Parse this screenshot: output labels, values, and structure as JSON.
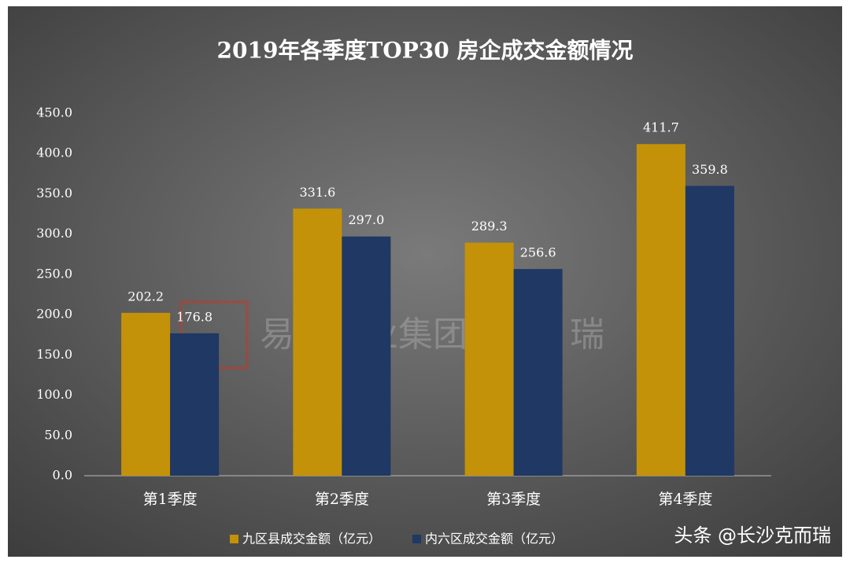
{
  "chart_data": {
    "type": "bar",
    "title": "2019年各季度TOP30 房企成交金额情况",
    "categories": [
      "第1季度",
      "第2季度",
      "第3季度",
      "第4季度"
    ],
    "series": [
      {
        "name": "九区县成交金额（亿元）",
        "color": "#c39209",
        "values": [
          202.2,
          331.6,
          289.3,
          411.7
        ],
        "value_labels": [
          "202.2",
          "331.6",
          "289.3",
          "411.7"
        ]
      },
      {
        "name": "内六区成交金额（亿元）",
        "color": "#1f3864",
        "values": [
          176.8,
          297.0,
          256.6,
          359.8
        ],
        "value_labels": [
          "176.8",
          "297.0",
          "256.6",
          "359.8"
        ]
      }
    ],
    "ylim": [
      0,
      450
    ],
    "yticks": [
      {
        "value": 0,
        "label": "0.0"
      },
      {
        "value": 50,
        "label": "50.0"
      },
      {
        "value": 100,
        "label": "100.0"
      },
      {
        "value": 150,
        "label": "150.0"
      },
      {
        "value": 200,
        "label": "200.0"
      },
      {
        "value": 250,
        "label": "250.0"
      },
      {
        "value": 300,
        "label": "300.0"
      },
      {
        "value": 350,
        "label": "350.0"
      },
      {
        "value": 400,
        "label": "400.0"
      },
      {
        "value": 450,
        "label": "450.0"
      }
    ],
    "grid": false,
    "legend": "bottom",
    "watermark": "易居企业集团·克 而 瑞",
    "source": "头条 @长沙克而瑞"
  }
}
